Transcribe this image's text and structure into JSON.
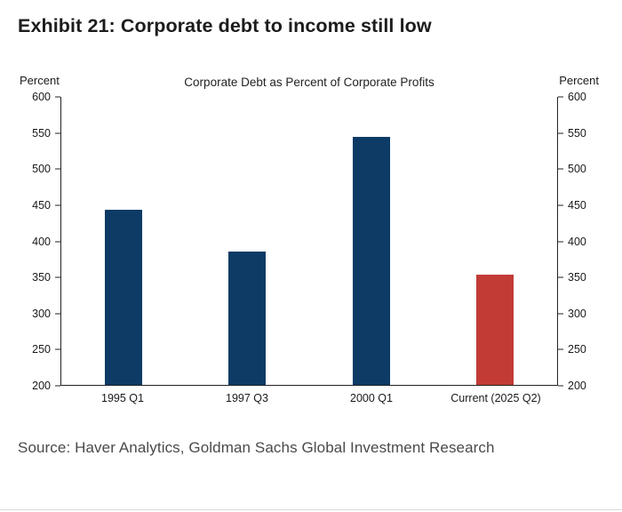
{
  "page": {
    "title": "Exhibit 21: Corporate debt to income still low",
    "source": "Source: Haver Analytics, Goldman Sachs Global Investment Research"
  },
  "chart_data": {
    "type": "bar",
    "title": "Corporate Debt as Percent of Corporate Profits",
    "categories": [
      "1995 Q1",
      "1997 Q3",
      "2000 Q1",
      "Current (2025 Q2)"
    ],
    "values": [
      443,
      385,
      545,
      353
    ],
    "bar_colors": [
      "#0d3b66",
      "#0d3b66",
      "#0d3b66",
      "#c23b35"
    ],
    "ylabel_left": "Percent",
    "ylabel_right": "Percent",
    "ylim": [
      200,
      600
    ],
    "yticks": [
      200,
      250,
      300,
      350,
      400,
      450,
      500,
      550,
      600
    ],
    "grid": false,
    "legend": "none",
    "colors": {
      "navy": "#0d3b66",
      "red": "#c23b35"
    }
  }
}
